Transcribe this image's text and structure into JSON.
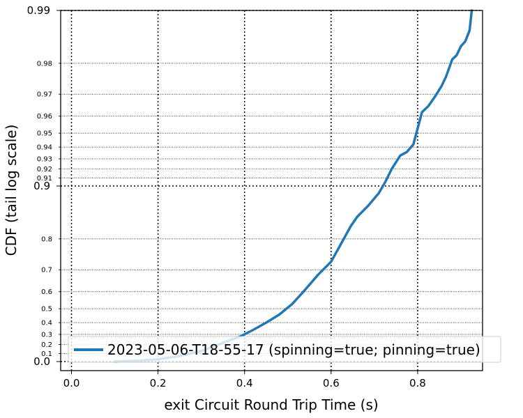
{
  "chart_data": {
    "type": "line",
    "title": "",
    "xlabel": "exit Circuit Round Trip Time (s)",
    "ylabel": "CDF (tail log scale)",
    "y_scale": "tail-log",
    "xlim": [
      -0.025,
      0.95
    ],
    "ylim": [
      0.0,
      0.99
    ],
    "grid": true,
    "legend_position": "lower-right",
    "line_color": "#1f77b4",
    "x_ticks": [
      {
        "value": 0.0,
        "label": "0.0"
      },
      {
        "value": 0.2,
        "label": "0.2"
      },
      {
        "value": 0.4,
        "label": "0.4"
      },
      {
        "value": 0.6,
        "label": "0.6"
      },
      {
        "value": 0.8,
        "label": "0.8"
      }
    ],
    "y_major_ticks": [
      {
        "value": 0.0,
        "label": "0.0"
      },
      {
        "value": 0.9,
        "label": "0.9"
      },
      {
        "value": 0.99,
        "label": "0.99"
      }
    ],
    "y_minor_ticks": [
      {
        "value": 0.1,
        "label": "0.1"
      },
      {
        "value": 0.2,
        "label": "0.2"
      },
      {
        "value": 0.3,
        "label": "0.3"
      },
      {
        "value": 0.4,
        "label": "0.4"
      },
      {
        "value": 0.5,
        "label": "0.5"
      },
      {
        "value": 0.6,
        "label": "0.6"
      },
      {
        "value": 0.7,
        "label": "0.7"
      },
      {
        "value": 0.8,
        "label": "0.8"
      },
      {
        "value": 0.91,
        "label": "0.91"
      },
      {
        "value": 0.92,
        "label": "0.92"
      },
      {
        "value": 0.93,
        "label": "0.93"
      },
      {
        "value": 0.94,
        "label": "0.94"
      },
      {
        "value": 0.95,
        "label": "0.95"
      },
      {
        "value": 0.96,
        "label": "0.96"
      },
      {
        "value": 0.97,
        "label": "0.97"
      },
      {
        "value": 0.98,
        "label": "0.98"
      }
    ],
    "series": [
      {
        "name": "2023-05-06-T18-55-17 (spinning=true; pinning=true)",
        "x": [
          0.1,
          0.15,
          0.2,
          0.25,
          0.3,
          0.34,
          0.37,
          0.39,
          0.42,
          0.45,
          0.48,
          0.51,
          0.54,
          0.57,
          0.6,
          0.62,
          0.645,
          0.66,
          0.685,
          0.71,
          0.725,
          0.74,
          0.76,
          0.775,
          0.79,
          0.8,
          0.81,
          0.825,
          0.84,
          0.855,
          0.865,
          0.88,
          0.89,
          0.9,
          0.91,
          0.92,
          0.925
        ],
        "y": [
          0.0,
          0.01,
          0.03,
          0.07,
          0.13,
          0.2,
          0.25,
          0.28,
          0.34,
          0.4,
          0.46,
          0.53,
          0.61,
          0.68,
          0.73,
          0.78,
          0.83,
          0.85,
          0.87,
          0.89,
          0.905,
          0.92,
          0.933,
          0.936,
          0.942,
          0.953,
          0.962,
          0.965,
          0.969,
          0.973,
          0.976,
          0.981,
          0.982,
          0.984,
          0.985,
          0.987,
          0.99
        ]
      }
    ]
  }
}
